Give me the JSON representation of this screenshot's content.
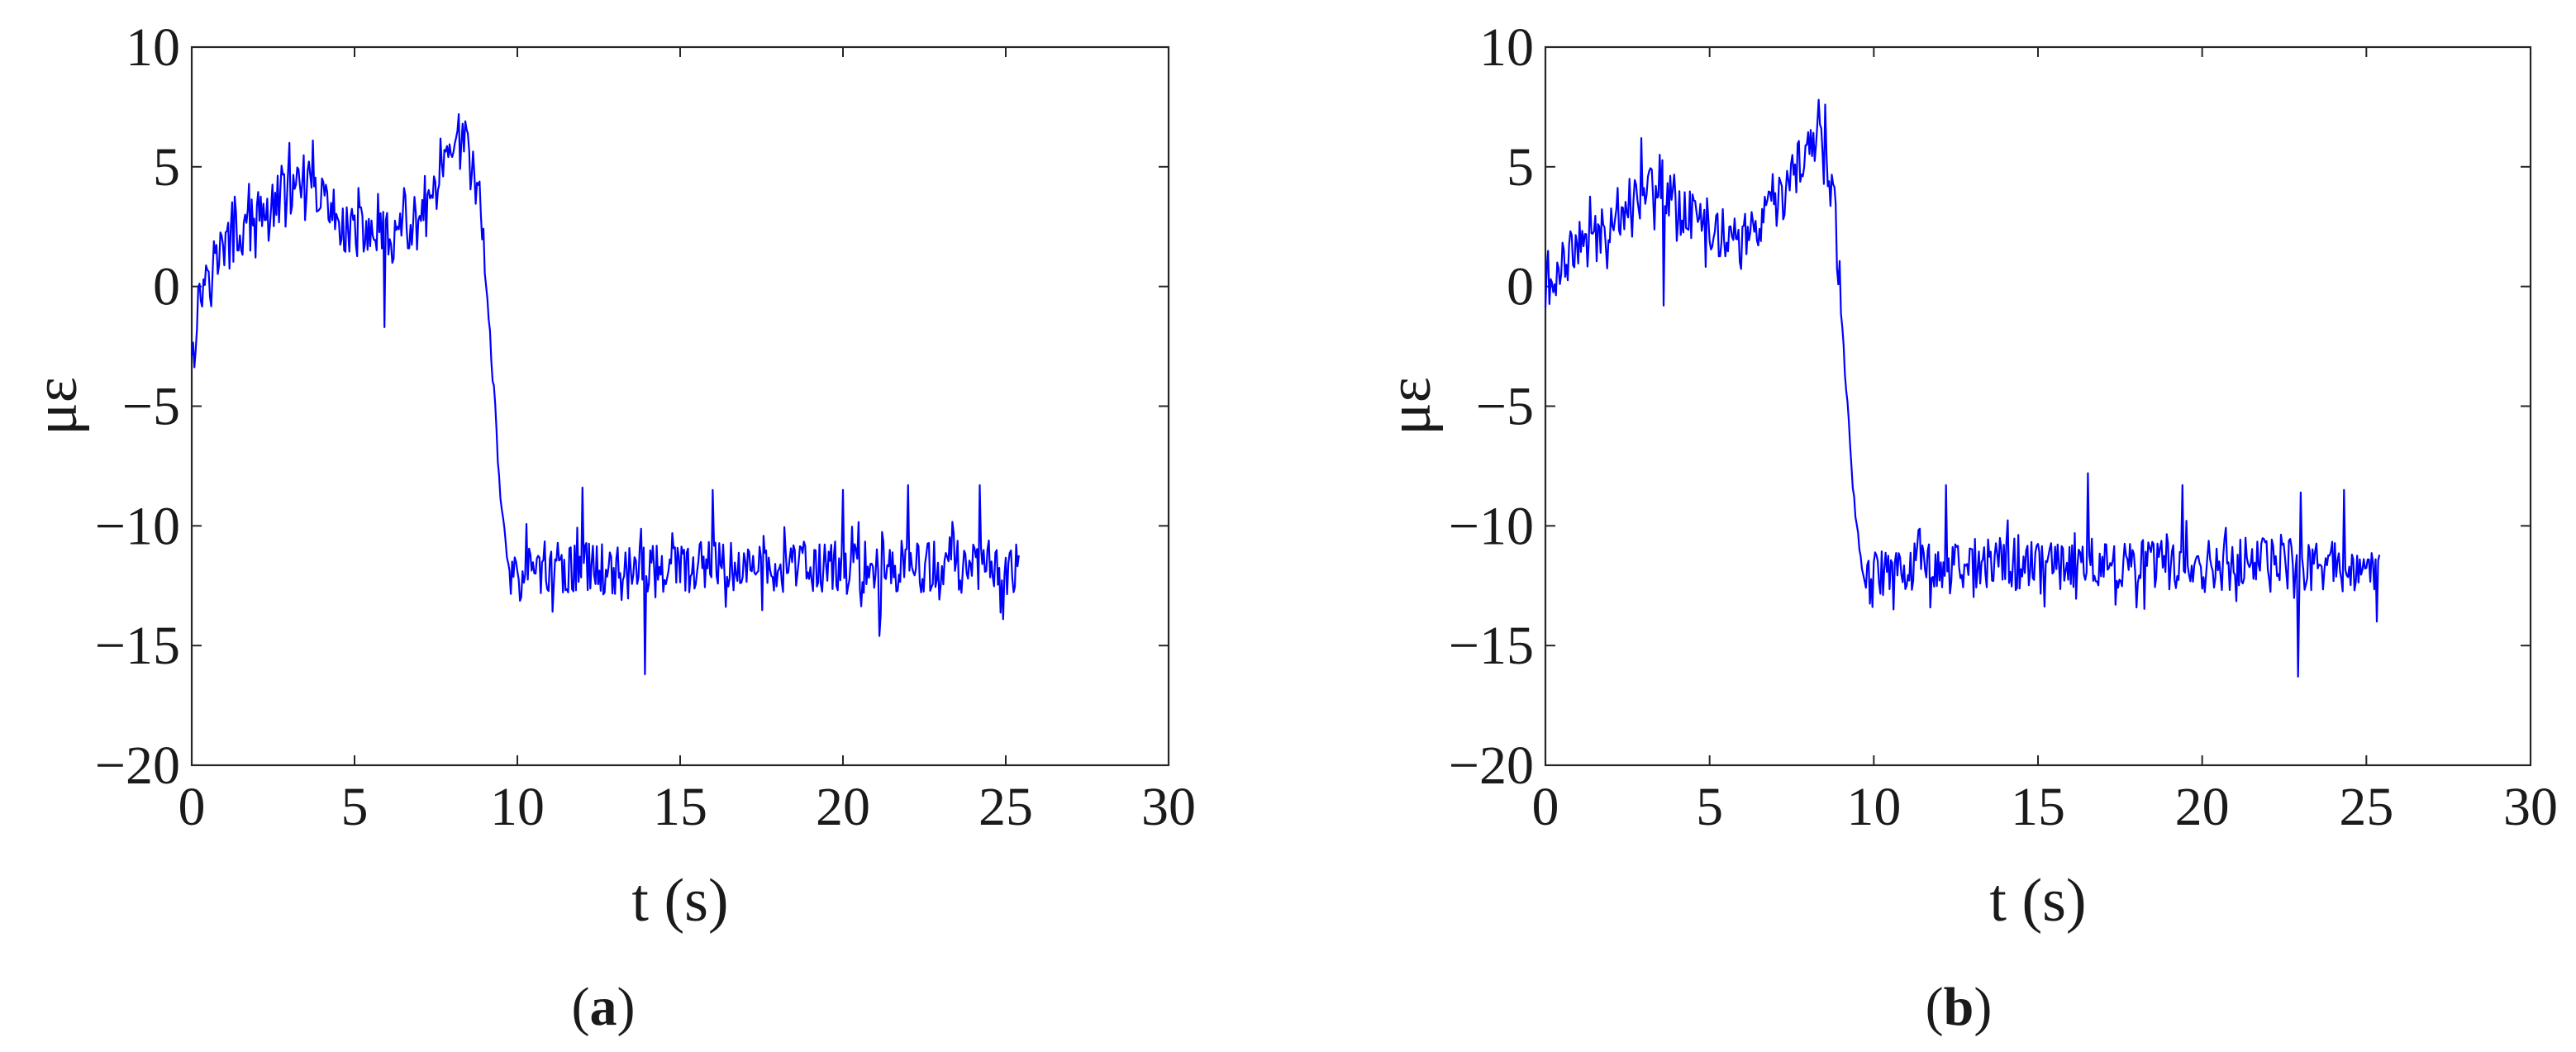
{
  "chart_data": [
    {
      "type": "line",
      "caption": "(a)",
      "caption_letter": "a",
      "xlabel": "t (s)",
      "ylabel": "με",
      "xlim": [
        0,
        30
      ],
      "ylim": [
        -20,
        10
      ],
      "xticks": [
        0,
        5,
        10,
        15,
        20,
        25,
        30
      ],
      "yticks": [
        -20,
        -15,
        -10,
        -5,
        0,
        5,
        10
      ],
      "grid": false,
      "series_color": "#0000ff",
      "series": [
        {
          "x_range": [
            0,
            25.4
          ],
          "sample_step": 0.04,
          "waveform": {
            "levels": [
              [
                0,
                -2.0
              ],
              [
                0.5,
                1.0
              ],
              [
                1.2,
                1.8
              ],
              [
                2.0,
                2.8
              ],
              [
                3.0,
                4.0
              ],
              [
                4.0,
                3.6
              ],
              [
                4.8,
                2.4
              ],
              [
                6.0,
                2.0
              ],
              [
                7.0,
                2.4
              ],
              [
                7.8,
                4.8
              ],
              [
                8.4,
                6.0
              ],
              [
                8.9,
                3.2
              ],
              [
                9.2,
                -3.0
              ],
              [
                9.5,
                -9.0
              ],
              [
                9.8,
                -12.4
              ],
              [
                10.3,
                -11.8
              ],
              [
                25.4,
                -11.7
              ]
            ],
            "noise_amplitude": 1.1,
            "spikes": [
              [
                0.1,
                -2.7
              ],
              [
                3.0,
                6.0
              ],
              [
                3.7,
                6.1
              ],
              [
                5.9,
                -1.7
              ],
              [
                8.3,
                6.8
              ],
              [
                12.0,
                -8.4
              ],
              [
                13.9,
                -16.2
              ],
              [
                16.0,
                -8.5
              ],
              [
                20.0,
                -8.5
              ],
              [
                21.1,
                -14.6
              ],
              [
                22.0,
                -8.3
              ],
              [
                24.2,
                -8.3
              ],
              [
                24.9,
                -13.9
              ]
            ]
          }
        }
      ]
    },
    {
      "type": "line",
      "caption": "(b)",
      "caption_letter": "b",
      "xlabel": "t (s)",
      "ylabel": "με",
      "xlim": [
        0,
        30
      ],
      "ylim": [
        -20,
        10
      ],
      "xticks": [
        0,
        5,
        10,
        15,
        20,
        25,
        30
      ],
      "yticks": [
        -20,
        -15,
        -10,
        -5,
        0,
        5,
        10
      ],
      "grid": false,
      "series_color": "#0000ff",
      "series": [
        {
          "x_range": [
            0,
            25.4
          ],
          "sample_step": 0.04,
          "waveform": {
            "levels": [
              [
                0,
                -0.5
              ],
              [
                0.5,
                1.2
              ],
              [
                1.5,
                2.0
              ],
              [
                2.5,
                3.6
              ],
              [
                3.5,
                4.4
              ],
              [
                4.2,
                3.2
              ],
              [
                5.0,
                2.4
              ],
              [
                6.2,
                2.0
              ],
              [
                7.0,
                3.2
              ],
              [
                7.8,
                5.2
              ],
              [
                8.3,
                6.4
              ],
              [
                8.8,
                3.6
              ],
              [
                9.1,
                -3.0
              ],
              [
                9.4,
                -9.0
              ],
              [
                9.7,
                -12.6
              ],
              [
                10.3,
                -11.6
              ],
              [
                25.4,
                -11.6
              ]
            ],
            "noise_amplitude": 1.1,
            "spikes": [
              [
                0.05,
                0.8
              ],
              [
                2.9,
                6.2
              ],
              [
                3.6,
                5.3
              ],
              [
                3.6,
                -0.8
              ],
              [
                8.3,
                7.8
              ],
              [
                8.5,
                7.6
              ],
              [
                12.2,
                -8.3
              ],
              [
                16.5,
                -7.8
              ],
              [
                19.4,
                -8.3
              ],
              [
                22.9,
                -16.3
              ],
              [
                23.0,
                -8.6
              ],
              [
                24.3,
                -8.5
              ],
              [
                25.3,
                -14.0
              ]
            ]
          }
        }
      ]
    }
  ]
}
